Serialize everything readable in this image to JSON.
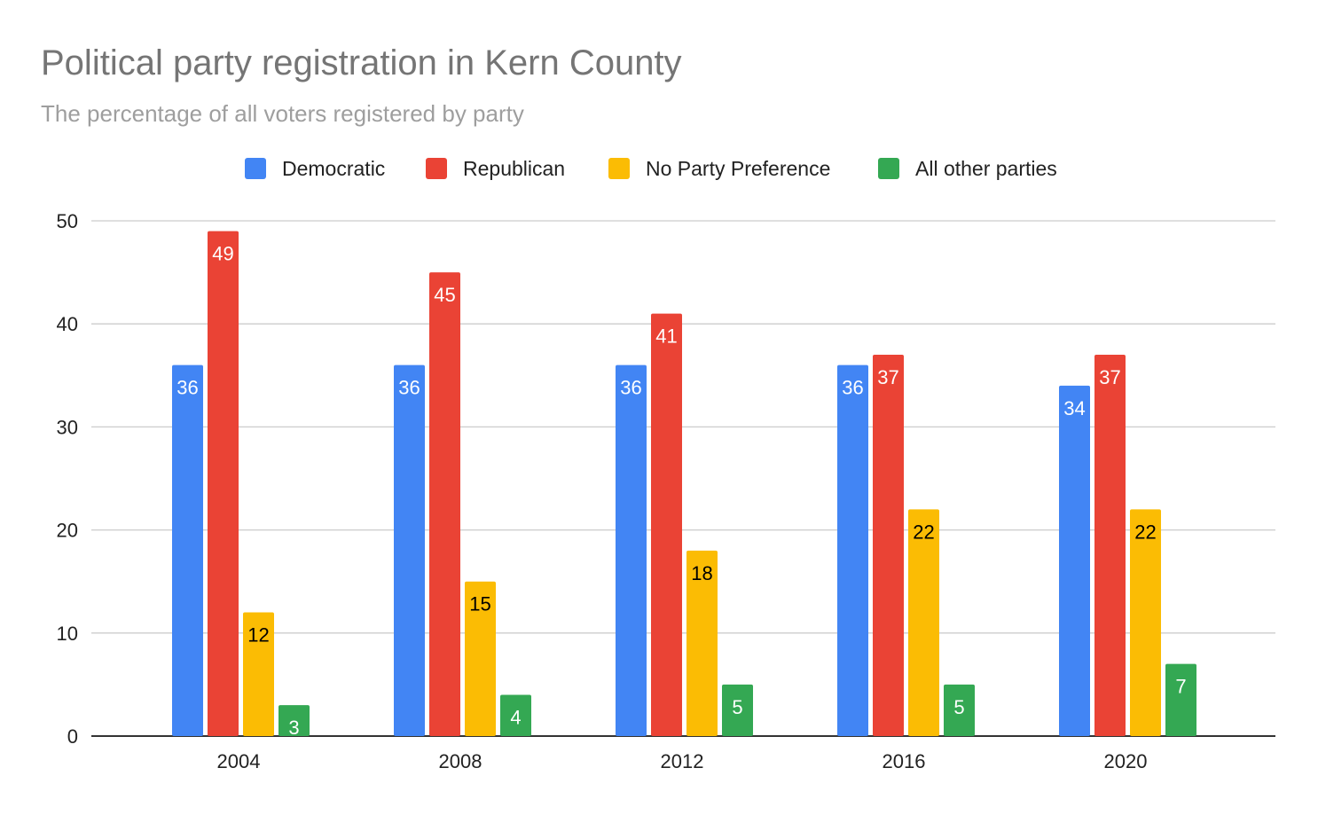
{
  "chart_data": {
    "type": "bar",
    "title": "Political party registration in Kern County",
    "subtitle": "The percentage of all voters registered by party",
    "xlabel": "",
    "ylabel": "",
    "ylim": [
      0,
      50
    ],
    "yticks": [
      "0",
      "10",
      "20",
      "30",
      "40",
      "50"
    ],
    "grid": true,
    "legend_position": "top",
    "categories": [
      "2004",
      "2008",
      "2012",
      "2016",
      "2020"
    ],
    "series": [
      {
        "name": "Democratic",
        "color": "#4285f4",
        "label_color": "#ffffff",
        "values": [
          36,
          36,
          36,
          36,
          34
        ]
      },
      {
        "name": "Republican",
        "color": "#ea4335",
        "label_color": "#ffffff",
        "values": [
          49,
          45,
          41,
          37,
          37
        ]
      },
      {
        "name": "No Party Preference",
        "color": "#fbbc04",
        "label_color": "#000000",
        "values": [
          12,
          15,
          18,
          22,
          22
        ]
      },
      {
        "name": "All other parties",
        "color": "#34a853",
        "label_color": "#ffffff",
        "values": [
          3,
          4,
          5,
          5,
          7
        ]
      }
    ]
  }
}
